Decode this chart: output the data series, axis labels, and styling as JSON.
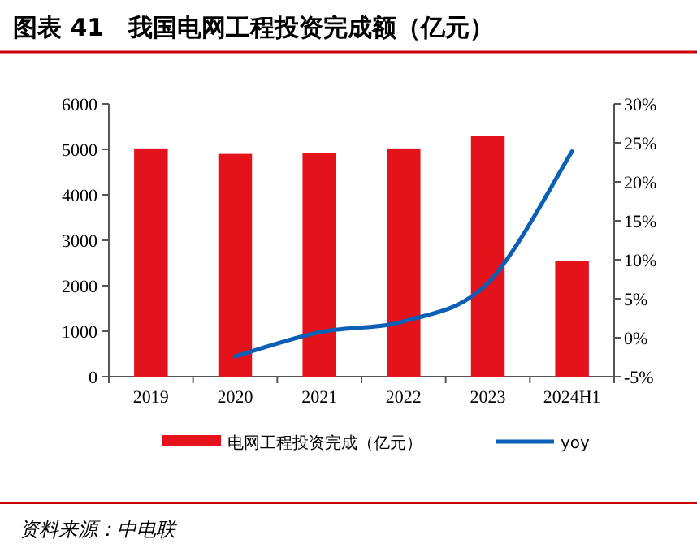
{
  "chart_data": {
    "type": "bar",
    "title": "图表 41　我国电网工程投资完成额（亿元）",
    "categories": [
      "2019",
      "2020",
      "2021",
      "2022",
      "2023",
      "2024H1"
    ],
    "series": [
      {
        "name": "电网工程投资完成（亿元）",
        "color": "#e3121b",
        "values": [
          5020,
          4900,
          4920,
          5020,
          5300,
          2540
        ]
      },
      {
        "name": "yoy",
        "type": "line",
        "axis": "y2",
        "color": "#0b5fb5",
        "values": [
          null,
          -2.4,
          0.7,
          2.1,
          7.0,
          23.9
        ]
      }
    ],
    "ylim": [
      0,
      6000
    ],
    "yticks": [
      0,
      1000,
      2000,
      3000,
      4000,
      5000,
      6000
    ],
    "y2lim": [
      -5,
      30
    ],
    "y2ticks": [
      {
        "value": -5,
        "label": "-5%"
      },
      {
        "value": 0,
        "label": "0%"
      },
      {
        "value": 5,
        "label": "5%"
      },
      {
        "value": 10,
        "label": "10%"
      },
      {
        "value": 15,
        "label": "15%"
      },
      {
        "value": 20,
        "label": "20%"
      },
      {
        "value": 25,
        "label": "25%"
      },
      {
        "value": 30,
        "label": "30%"
      }
    ],
    "grid": false,
    "legend": "bottom",
    "marker": "none",
    "line_style": "solid",
    "annotations": [
      "资料来源：中电联"
    ]
  }
}
